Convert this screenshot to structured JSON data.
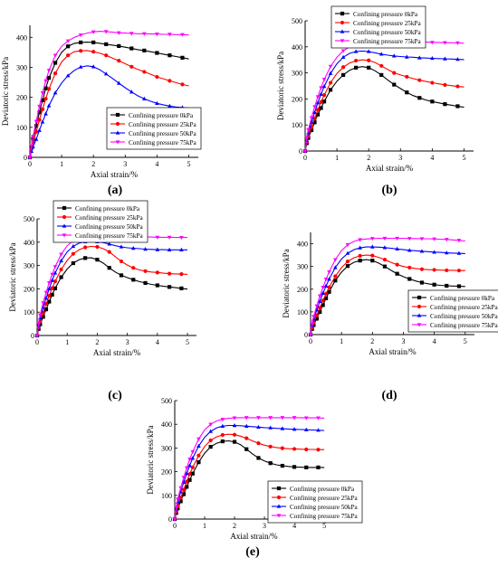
{
  "figure": {
    "panel_labels": [
      "(a)",
      "(b)",
      "(c)",
      "(d)",
      "(e)"
    ]
  },
  "chart_data": [
    {
      "type": "line",
      "panel_label": "(a)",
      "xlabel": "Axial strain/%",
      "ylabel": "Deviatoric stress/kPa",
      "xlim": [
        0,
        5.3
      ],
      "ylim": [
        0,
        440
      ],
      "xticks": [
        0,
        1,
        2,
        3,
        4,
        5
      ],
      "yticks": [
        0,
        100,
        200,
        300,
        400
      ],
      "grid": false,
      "legend_position": "bottom-right",
      "x": [
        0,
        0.05,
        0.1,
        0.2,
        0.3,
        0.4,
        0.5,
        0.6,
        0.8,
        1.0,
        1.2,
        1.4,
        1.6,
        1.8,
        2.0,
        2.2,
        2.4,
        2.6,
        2.8,
        3.0,
        3.2,
        3.4,
        3.6,
        3.8,
        4.0,
        4.2,
        4.4,
        4.6,
        4.8,
        5.0
      ],
      "series": [
        {
          "name": "Confining pressure 0kPa",
          "color": "#000000",
          "marker": "square",
          "values": [
            0,
            35,
            62,
            105,
            150,
            190,
            230,
            265,
            315,
            350,
            370,
            380,
            383,
            384,
            383,
            380,
            377,
            374,
            371,
            367,
            363,
            359,
            356,
            352,
            348,
            344,
            340,
            336,
            332,
            328
          ]
        },
        {
          "name": "Confining pressure 25kPa",
          "color": "#ff0000",
          "marker": "circle",
          "values": [
            0,
            28,
            50,
            85,
            125,
            160,
            195,
            228,
            280,
            318,
            340,
            352,
            355,
            356,
            352,
            347,
            340,
            331,
            322,
            312,
            302,
            293,
            285,
            277,
            268,
            262,
            255,
            249,
            243,
            238
          ]
        },
        {
          "name": "Confining pressure 50kPa",
          "color": "#0000ff",
          "marker": "triangle-up",
          "values": [
            0,
            20,
            35,
            60,
            90,
            118,
            145,
            172,
            215,
            248,
            272,
            290,
            301,
            305,
            302,
            292,
            278,
            263,
            247,
            232,
            218,
            205,
            195,
            187,
            180,
            175,
            171,
            168,
            166,
            164
          ]
        },
        {
          "name": "Confining pressure 75kPa",
          "color": "#ff00ff",
          "marker": "triangle-down",
          "values": [
            0,
            38,
            70,
            120,
            170,
            215,
            255,
            290,
            340,
            370,
            388,
            400,
            408,
            414,
            418,
            420,
            419,
            417,
            415,
            414,
            413,
            412,
            412,
            411,
            411,
            410,
            410,
            409,
            409,
            408
          ]
        }
      ]
    },
    {
      "type": "line",
      "panel_label": "(b)",
      "xlabel": "Axial strain/%",
      "ylabel": "Deviatoric stress/kPa",
      "xlim": [
        0,
        5.3
      ],
      "ylim": [
        0,
        500
      ],
      "xticks": [
        0,
        1,
        2,
        3,
        4,
        5
      ],
      "yticks": [
        0,
        100,
        200,
        300,
        400,
        500
      ],
      "grid": false,
      "legend_position": "top-right",
      "x": [
        0,
        0.05,
        0.1,
        0.2,
        0.3,
        0.4,
        0.5,
        0.6,
        0.8,
        1.0,
        1.2,
        1.4,
        1.6,
        1.8,
        2.0,
        2.2,
        2.4,
        2.6,
        2.8,
        3.0,
        3.2,
        3.4,
        3.6,
        3.8,
        4.0,
        4.2,
        4.4,
        4.6,
        4.8,
        5.0
      ],
      "series": [
        {
          "name": "Confining pressure 0kPa",
          "color": "#000000",
          "marker": "square",
          "values": [
            0,
            30,
            50,
            80,
            110,
            140,
            165,
            190,
            235,
            268,
            292,
            310,
            320,
            324,
            320,
            308,
            292,
            273,
            255,
            240,
            225,
            213,
            204,
            196,
            190,
            185,
            180,
            176,
            172,
            168
          ]
        },
        {
          "name": "Confining pressure 25kPa",
          "color": "#ff0000",
          "marker": "circle",
          "values": [
            0,
            35,
            58,
            92,
            125,
            158,
            188,
            215,
            262,
            298,
            322,
            338,
            347,
            350,
            348,
            340,
            327,
            313,
            300,
            292,
            285,
            278,
            272,
            267,
            262,
            258,
            254,
            251,
            248,
            246
          ]
        },
        {
          "name": "Confining pressure 50kPa",
          "color": "#0000ff",
          "marker": "triangle-up",
          "values": [
            0,
            42,
            70,
            110,
            148,
            185,
            218,
            248,
            298,
            335,
            360,
            375,
            382,
            384,
            382,
            377,
            372,
            368,
            365,
            363,
            361,
            360,
            358,
            357,
            356,
            355,
            354,
            353,
            352,
            351
          ]
        },
        {
          "name": "Confining pressure 75kPa",
          "color": "#ff00ff",
          "marker": "triangle-down",
          "values": [
            0,
            50,
            82,
            128,
            170,
            208,
            243,
            275,
            325,
            360,
            385,
            400,
            408,
            413,
            415,
            416,
            417,
            417,
            418,
            418,
            418,
            418,
            418,
            418,
            417,
            417,
            416,
            416,
            415,
            414
          ]
        }
      ]
    },
    {
      "type": "line",
      "panel_label": "(c)",
      "xlabel": "Axial strain/%",
      "ylabel": "Deviatoric stress/kPa",
      "xlim": [
        0,
        5.3
      ],
      "ylim": [
        0,
        500
      ],
      "xticks": [
        0,
        1,
        2,
        3,
        4,
        5
      ],
      "yticks": [
        0,
        100,
        200,
        300,
        400,
        500
      ],
      "grid": false,
      "legend_position": "top-left",
      "x": [
        0,
        0.05,
        0.1,
        0.2,
        0.3,
        0.4,
        0.5,
        0.6,
        0.8,
        1.0,
        1.2,
        1.4,
        1.6,
        1.8,
        2.0,
        2.2,
        2.4,
        2.6,
        2.8,
        3.0,
        3.2,
        3.4,
        3.6,
        3.8,
        4.0,
        4.2,
        4.4,
        4.6,
        4.8,
        5.0
      ],
      "series": [
        {
          "name": "Confining pressure 0kPa",
          "color": "#000000",
          "marker": "square",
          "values": [
            0,
            28,
            48,
            80,
            112,
            145,
            175,
            202,
            250,
            285,
            310,
            325,
            332,
            333,
            325,
            310,
            290,
            272,
            258,
            248,
            239,
            231,
            225,
            219,
            215,
            211,
            208,
            205,
            202,
            199
          ]
        },
        {
          "name": "Confining pressure 25kPa",
          "color": "#ff0000",
          "marker": "circle",
          "values": [
            0,
            36,
            60,
            98,
            135,
            170,
            203,
            232,
            283,
            322,
            350,
            368,
            378,
            382,
            380,
            372,
            358,
            338,
            318,
            302,
            290,
            281,
            276,
            272,
            270,
            267,
            265,
            264,
            263,
            262
          ]
        },
        {
          "name": "Confining pressure 50kPa",
          "color": "#0000ff",
          "marker": "triangle-up",
          "values": [
            0,
            45,
            75,
            120,
            160,
            200,
            236,
            268,
            320,
            358,
            382,
            396,
            402,
            404,
            402,
            398,
            392,
            385,
            380,
            376,
            374,
            372,
            370,
            369,
            368,
            368,
            367,
            367,
            367,
            367
          ]
        },
        {
          "name": "Confining pressure 75kPa",
          "color": "#ff00ff",
          "marker": "triangle-down",
          "values": [
            0,
            52,
            88,
            140,
            185,
            226,
            262,
            295,
            348,
            385,
            405,
            416,
            420,
            422,
            423,
            423,
            423,
            423,
            423,
            423,
            422,
            422,
            422,
            422,
            421,
            421,
            421,
            420,
            420,
            420
          ]
        }
      ]
    },
    {
      "type": "line",
      "panel_label": "(d)",
      "xlabel": "Axial strain/%",
      "ylabel": "Deviatoric stress/kPa",
      "xlim": [
        0,
        5.3
      ],
      "ylim": [
        0,
        450
      ],
      "xticks": [
        0,
        1,
        2,
        3,
        4,
        5
      ],
      "yticks": [
        0,
        100,
        200,
        300,
        400
      ],
      "grid": false,
      "legend_position": "bottom-right",
      "x": [
        0,
        0.05,
        0.1,
        0.2,
        0.3,
        0.4,
        0.5,
        0.6,
        0.8,
        1.0,
        1.2,
        1.4,
        1.6,
        1.8,
        2.0,
        2.2,
        2.4,
        2.6,
        2.8,
        3.0,
        3.2,
        3.4,
        3.6,
        3.8,
        4.0,
        4.2,
        4.4,
        4.6,
        4.8,
        5.0
      ],
      "series": [
        {
          "name": "Confining pressure 0kPa",
          "color": "#000000",
          "marker": "square",
          "values": [
            0,
            25,
            42,
            70,
            100,
            130,
            160,
            188,
            238,
            275,
            302,
            318,
            326,
            330,
            326,
            315,
            300,
            283,
            268,
            255,
            245,
            236,
            229,
            224,
            220,
            217,
            215,
            214,
            213,
            212
          ]
        },
        {
          "name": "Confining pressure 25kPa",
          "color": "#ff0000",
          "marker": "circle",
          "values": [
            0,
            30,
            52,
            85,
            118,
            150,
            180,
            208,
            257,
            295,
            322,
            338,
            347,
            350,
            348,
            340,
            330,
            318,
            308,
            300,
            295,
            291,
            288,
            286,
            285,
            284,
            283,
            283,
            282,
            282
          ]
        },
        {
          "name": "Confining pressure 50kPa",
          "color": "#0000ff",
          "marker": "triangle-up",
          "values": [
            0,
            40,
            68,
            108,
            146,
            182,
            214,
            244,
            295,
            333,
            358,
            374,
            382,
            386,
            386,
            385,
            383,
            380,
            377,
            374,
            371,
            369,
            367,
            365,
            363,
            362,
            360,
            359,
            358,
            357
          ]
        },
        {
          "name": "Confining pressure 75kPa",
          "color": "#ff00ff",
          "marker": "triangle-down",
          "values": [
            0,
            48,
            80,
            126,
            170,
            208,
            244,
            276,
            330,
            370,
            396,
            410,
            418,
            421,
            423,
            424,
            424,
            424,
            424,
            424,
            423,
            423,
            422,
            422,
            421,
            420,
            419,
            417,
            415,
            412
          ]
        }
      ]
    },
    {
      "type": "line",
      "panel_label": "(e)",
      "xlabel": "Axial strain/%",
      "ylabel": "Deviatoric stress/kPa",
      "xlim": [
        0,
        5.3
      ],
      "ylim": [
        0,
        500
      ],
      "xticks": [
        0,
        1,
        2,
        3,
        4,
        5
      ],
      "yticks": [
        0,
        100,
        200,
        300,
        400,
        500
      ],
      "grid": false,
      "legend_position": "bottom-right",
      "x": [
        0,
        0.05,
        0.1,
        0.2,
        0.3,
        0.4,
        0.5,
        0.6,
        0.8,
        1.0,
        1.2,
        1.4,
        1.6,
        1.8,
        2.0,
        2.2,
        2.4,
        2.6,
        2.8,
        3.0,
        3.2,
        3.4,
        3.6,
        3.8,
        4.0,
        4.2,
        4.4,
        4.6,
        4.8,
        5.0
      ],
      "series": [
        {
          "name": "Confining pressure 0kPa",
          "color": "#000000",
          "marker": "square",
          "values": [
            0,
            26,
            45,
            75,
            105,
            136,
            165,
            192,
            240,
            278,
            305,
            320,
            328,
            330,
            326,
            314,
            295,
            275,
            258,
            245,
            236,
            229,
            225,
            222,
            220,
            219,
            218,
            218,
            218,
            218
          ]
        },
        {
          "name": "Confining pressure 25kPa",
          "color": "#ff0000",
          "marker": "circle",
          "values": [
            0,
            32,
            55,
            90,
            124,
            158,
            190,
            218,
            268,
            306,
            332,
            347,
            355,
            358,
            356,
            350,
            341,
            330,
            320,
            312,
            306,
            302,
            299,
            297,
            296,
            295,
            294,
            294,
            293,
            293
          ]
        },
        {
          "name": "Confining pressure 50kPa",
          "color": "#0000ff",
          "marker": "triangle-up",
          "values": [
            0,
            42,
            72,
            115,
            155,
            192,
            226,
            257,
            308,
            345,
            370,
            385,
            392,
            395,
            395,
            394,
            392,
            390,
            388,
            386,
            385,
            383,
            382,
            380,
            379,
            378,
            377,
            376,
            375,
            374
          ]
        },
        {
          "name": "Confining pressure 75kPa",
          "color": "#ff00ff",
          "marker": "triangle-down",
          "values": [
            0,
            50,
            84,
            132,
            176,
            216,
            252,
            284,
            338,
            376,
            400,
            414,
            421,
            425,
            427,
            428,
            428,
            428,
            428,
            428,
            428,
            428,
            428,
            428,
            428,
            428,
            427,
            427,
            427,
            426
          ]
        }
      ]
    }
  ]
}
